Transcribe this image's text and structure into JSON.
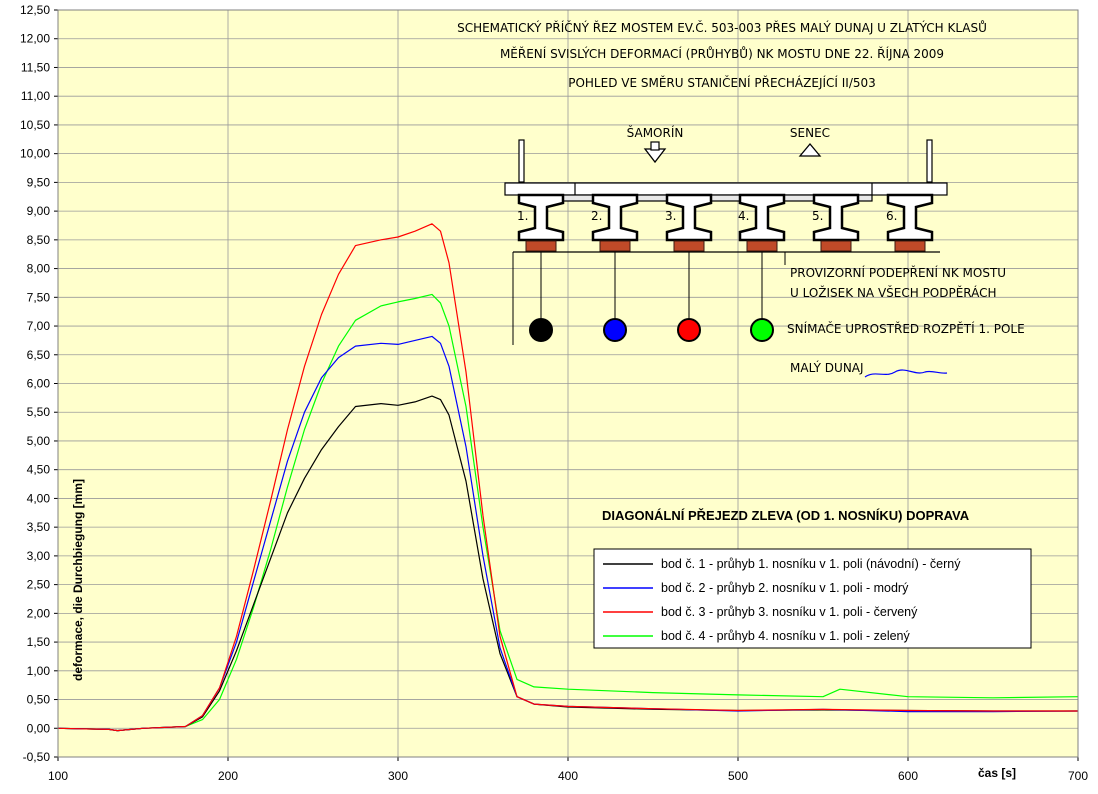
{
  "chart_data": {
    "type": "line",
    "xlabel": "čas [s]",
    "ylabel": "deformace, die Durchbiegung [mm]",
    "xlim": [
      100,
      700
    ],
    "ylim": [
      -0.5,
      12.5
    ],
    "x_ticks": [
      "100",
      "200",
      "300",
      "400",
      "500",
      "600",
      "700"
    ],
    "y_ticks": [
      "-0,50",
      "0,00",
      "0,50",
      "1,00",
      "1,50",
      "2,00",
      "2,50",
      "3,00",
      "3,50",
      "4,00",
      "4,50",
      "5,00",
      "5,50",
      "6,00",
      "6,50",
      "7,00",
      "7,50",
      "8,00",
      "8,50",
      "9,00",
      "9,50",
      "10,00",
      "10,50",
      "11,00",
      "11,50",
      "12,00",
      "12,50"
    ],
    "grid": true,
    "background": "#ffffcc",
    "legend_placement": "center-right",
    "series": [
      {
        "name": "bod č. 1 - průhyb 1. nosníku v 1. poli (návodní) - černý",
        "color": "#000000",
        "x": [
          100,
          130,
          135,
          150,
          175,
          185,
          195,
          205,
          215,
          225,
          235,
          245,
          255,
          265,
          275,
          290,
          300,
          310,
          320,
          325,
          330,
          340,
          350,
          360,
          370,
          380,
          400,
          450,
          500,
          550,
          600,
          650,
          700
        ],
        "y": [
          0.0,
          -0.02,
          -0.04,
          0.0,
          0.03,
          0.2,
          0.65,
          1.35,
          2.15,
          2.95,
          3.75,
          4.35,
          4.85,
          5.25,
          5.6,
          5.65,
          5.62,
          5.68,
          5.78,
          5.72,
          5.45,
          4.3,
          2.6,
          1.3,
          0.55,
          0.42,
          0.37,
          0.33,
          0.31,
          0.32,
          0.31,
          0.3,
          0.3
        ]
      },
      {
        "name": "bod č. 2 - průhyb 2. nosníku v 1. poli  - modrý",
        "color": "#0000ff",
        "x": [
          100,
          130,
          135,
          150,
          175,
          185,
          195,
          205,
          215,
          225,
          235,
          245,
          255,
          265,
          275,
          290,
          300,
          310,
          320,
          325,
          330,
          340,
          350,
          360,
          370,
          380,
          400,
          450,
          500,
          550,
          600,
          650,
          700
        ],
        "y": [
          0.0,
          -0.02,
          -0.04,
          0.0,
          0.03,
          0.22,
          0.7,
          1.5,
          2.55,
          3.6,
          4.65,
          5.5,
          6.1,
          6.45,
          6.65,
          6.7,
          6.68,
          6.75,
          6.82,
          6.7,
          6.3,
          4.9,
          3.0,
          1.4,
          0.55,
          0.42,
          0.38,
          0.34,
          0.3,
          0.33,
          0.29,
          0.29,
          0.3
        ]
      },
      {
        "name": "bod č. 3 - průhyb 3. nosníku v 1. poli  - červený",
        "color": "#ff0000",
        "x": [
          100,
          130,
          135,
          150,
          175,
          185,
          195,
          205,
          215,
          225,
          235,
          245,
          255,
          265,
          275,
          290,
          300,
          310,
          320,
          325,
          330,
          340,
          350,
          360,
          370,
          380,
          400,
          450,
          500,
          550,
          600,
          650,
          700
        ],
        "y": [
          0.0,
          -0.02,
          -0.04,
          0.0,
          0.03,
          0.22,
          0.7,
          1.6,
          2.75,
          3.95,
          5.2,
          6.3,
          7.2,
          7.9,
          8.4,
          8.5,
          8.55,
          8.65,
          8.78,
          8.65,
          8.1,
          6.2,
          3.7,
          1.6,
          0.55,
          0.42,
          0.38,
          0.34,
          0.31,
          0.33,
          0.31,
          0.3,
          0.3
        ]
      },
      {
        "name": "bod č. 4 - průhyb 4. nosníku v 1. poli  - zelený",
        "color": "#00ff00",
        "x": [
          100,
          130,
          135,
          150,
          175,
          185,
          195,
          205,
          215,
          225,
          235,
          245,
          255,
          265,
          275,
          290,
          300,
          310,
          320,
          325,
          330,
          340,
          350,
          360,
          370,
          380,
          400,
          450,
          500,
          550,
          560,
          600,
          650,
          700
        ],
        "y": [
          0.0,
          -0.02,
          -0.04,
          0.0,
          0.03,
          0.15,
          0.5,
          1.2,
          2.1,
          3.1,
          4.2,
          5.2,
          6.0,
          6.65,
          7.1,
          7.35,
          7.42,
          7.48,
          7.55,
          7.4,
          7.0,
          5.6,
          3.5,
          1.7,
          0.85,
          0.72,
          0.68,
          0.62,
          0.58,
          0.55,
          0.68,
          0.55,
          0.53,
          0.55
        ]
      }
    ],
    "annotations": {
      "title_lines": [
        "SCHEMATICKÝ PŘÍČNÝ ŘEZ MOSTEM EV.Č. 503-003 PŘES MALÝ DUNAJ U ZLATÝCH KLASŮ",
        "MĚŘENÍ SVISLÝCH DEFORMACÍ (PRŮHYBŮ) NK MOSTU DNE 22. ŘÍJNA 2009",
        "POHLED VE SMĚRU STANIČENÍ PŘECHÁZEJÍCÍ II/503"
      ],
      "direction_left": "ŠAMORÍN",
      "direction_right": "SENEC",
      "beam_labels": [
        "1.",
        "2.",
        "3.",
        "4.",
        "5.",
        "6."
      ],
      "support_note_lines": [
        "PROVIZORNÍ PODEPŘENÍ NK MOSTU",
        "U LOŽISEK NA VŠECH PODPĚRÁCH"
      ],
      "sensor_note": "SNÍMAČE UPROSTŘED ROZPĚTÍ 1. POLE",
      "sensor_colors": [
        "#000000",
        "#0000ff",
        "#ff0000",
        "#00ff00"
      ],
      "river_label": "MALÝ DUNAJ",
      "crossing_note": "DIAGONÁLNÍ PŘEJEZD ZLEVA (OD 1. NOSNÍKU)  DOPRAVA"
    }
  }
}
